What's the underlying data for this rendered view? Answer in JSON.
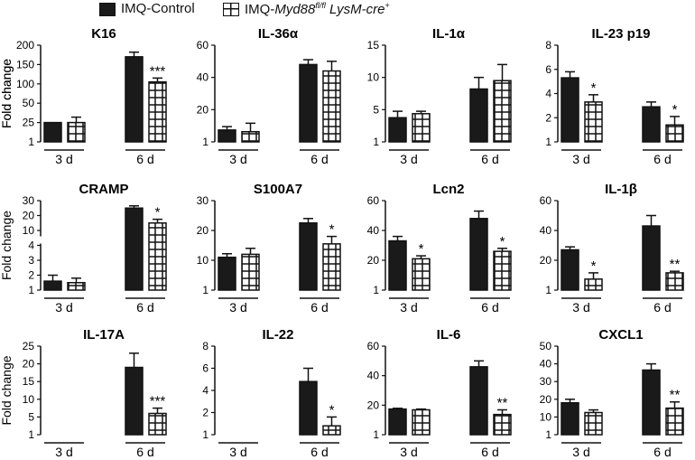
{
  "legend": {
    "control_label": "IMQ-Control",
    "knockout_prefix": "IMQ-",
    "knockout_gene": "Myd88",
    "knockout_sup1": "fl/fl",
    "knockout_mid": " LysM-cre",
    "knockout_sup2": "+",
    "control_color": "#1a1a1a",
    "knockout_pattern": "white with black grid"
  },
  "chart_data": [
    {
      "type": "bar",
      "title": "K16",
      "ylabel": "Fold change",
      "ylim": [
        1,
        200
      ],
      "yticks": [
        1,
        25,
        50,
        100,
        150,
        200
      ],
      "yticklabels": [
        "1",
        "25",
        "50",
        "100",
        "150",
        "200"
      ],
      "categories": [
        "3 d",
        "6 d"
      ],
      "series": [
        {
          "name": "IMQ-Control",
          "values": [
            25,
            170
          ],
          "errors": [
            0,
            12
          ]
        },
        {
          "name": "IMQ-Myd88fl/fl LysM-cre+",
          "values": [
            25,
            105
          ],
          "errors": [
            7,
            10
          ]
        }
      ],
      "significance": [
        "",
        "***"
      ]
    },
    {
      "type": "bar",
      "title": "IL-36α",
      "ylabel": "",
      "ylim": [
        1,
        60
      ],
      "yticks": [
        1,
        20,
        40,
        60
      ],
      "yticklabels": [
        "1",
        "20",
        "40",
        "60"
      ],
      "categories": [
        "3 d",
        "6 d"
      ],
      "series": [
        {
          "name": "IMQ-Control",
          "values": [
            8,
            48
          ],
          "errors": [
            2,
            3
          ]
        },
        {
          "name": "IMQ-Myd88fl/fl LysM-cre+",
          "values": [
            7,
            44
          ],
          "errors": [
            5,
            6
          ]
        }
      ],
      "significance": [
        "",
        ""
      ]
    },
    {
      "type": "bar",
      "title": "IL-1α",
      "ylabel": "",
      "ylim": [
        1,
        15
      ],
      "yticks": [
        1,
        5,
        10,
        15
      ],
      "yticklabels": [
        "1",
        "5",
        "10",
        "15"
      ],
      "categories": [
        "3 d",
        "6 d"
      ],
      "series": [
        {
          "name": "IMQ-Control",
          "values": [
            4,
            8.2
          ],
          "errors": [
            0.8,
            1.8
          ]
        },
        {
          "name": "IMQ-Myd88fl/fl LysM-cre+",
          "values": [
            4.5,
            9.5
          ],
          "errors": [
            0.3,
            2.5
          ]
        }
      ],
      "significance": [
        "",
        ""
      ]
    },
    {
      "type": "bar",
      "title": "IL-23 p19",
      "ylabel": "Fold change",
      "ylim": [
        1,
        8
      ],
      "yticks": [
        1,
        2,
        4,
        6,
        8
      ],
      "yticklabels": [
        "1",
        "2",
        "4",
        "6",
        "8"
      ],
      "categories": [
        "3 d",
        "6 d"
      ],
      "series": [
        {
          "name": "IMQ-Control",
          "values": [
            5.3,
            2.9
          ],
          "errors": [
            0.5,
            0.4
          ]
        },
        {
          "name": "IMQ-Myd88fl/fl LysM-cre+",
          "values": [
            3.3,
            1.7
          ],
          "errors": [
            0.6,
            0.4
          ]
        }
      ],
      "significance": [
        "*",
        "*"
      ]
    },
    {
      "type": "bar",
      "title": "CRAMP",
      "ylabel": "Fold change",
      "ylim": [
        1,
        30
      ],
      "yticks": [
        1,
        2,
        3,
        4,
        10,
        20,
        30
      ],
      "yticklabels": [
        "1",
        "2",
        "3",
        "4",
        "10",
        "20",
        "30"
      ],
      "axis_break": [
        4,
        4
      ],
      "categories": [
        "3 d",
        "6 d"
      ],
      "series": [
        {
          "name": "IMQ-Control",
          "values": [
            1.6,
            25
          ],
          "errors": [
            0.4,
            1.5
          ]
        },
        {
          "name": "IMQ-Myd88fl/fl LysM-cre+",
          "values": [
            1.5,
            15
          ],
          "errors": [
            0.3,
            2.5
          ]
        }
      ],
      "significance": [
        "",
        "*"
      ]
    },
    {
      "type": "bar",
      "title": "S100A7",
      "ylabel": "",
      "ylim": [
        1,
        30
      ],
      "yticks": [
        1,
        10,
        20,
        30
      ],
      "yticklabels": [
        "1",
        "10",
        "20",
        "30"
      ],
      "categories": [
        "3 d",
        "6 d"
      ],
      "series": [
        {
          "name": "IMQ-Control",
          "values": [
            11,
            22.5
          ],
          "errors": [
            1.2,
            1.5
          ]
        },
        {
          "name": "IMQ-Myd88fl/fl LysM-cre+",
          "values": [
            12,
            15.5
          ],
          "errors": [
            2,
            2.5
          ]
        }
      ],
      "significance": [
        "",
        "*"
      ]
    },
    {
      "type": "bar",
      "title": "Lcn2",
      "ylabel": "",
      "ylim": [
        1,
        60
      ],
      "yticks": [
        1,
        20,
        40,
        60
      ],
      "yticklabels": [
        "1",
        "20",
        "40",
        "60"
      ],
      "categories": [
        "3 d",
        "6 d"
      ],
      "series": [
        {
          "name": "IMQ-Control",
          "values": [
            33,
            48
          ],
          "errors": [
            3,
            5
          ]
        },
        {
          "name": "IMQ-Myd88fl/fl LysM-cre+",
          "values": [
            21,
            26
          ],
          "errors": [
            2,
            2
          ]
        }
      ],
      "significance": [
        "*",
        "*"
      ]
    },
    {
      "type": "bar",
      "title": "IL-1β",
      "ylabel": "",
      "ylim": [
        1,
        60
      ],
      "yticks": [
        1,
        20,
        40,
        60
      ],
      "yticklabels": [
        "1",
        "20",
        "40",
        "60"
      ],
      "categories": [
        "3 d",
        "6 d"
      ],
      "series": [
        {
          "name": "IMQ-Control",
          "values": [
            27,
            43
          ],
          "errors": [
            2,
            7
          ]
        },
        {
          "name": "IMQ-Myd88fl/fl LysM-cre+",
          "values": [
            8,
            12
          ],
          "errors": [
            4,
            1
          ]
        }
      ],
      "significance": [
        "*",
        "**"
      ]
    },
    {
      "type": "bar",
      "title": "IL-17A",
      "ylabel": "Fold change",
      "ylim": [
        1,
        25
      ],
      "yticks": [
        1,
        5,
        10,
        15,
        20,
        25
      ],
      "yticklabels": [
        "1",
        "5",
        "10",
        "15",
        "20",
        "25"
      ],
      "categories": [
        "3 d",
        "6 d"
      ],
      "series": [
        {
          "name": "IMQ-Control",
          "values": [
            null,
            19
          ],
          "errors": [
            0,
            4
          ]
        },
        {
          "name": "IMQ-Myd88fl/fl LysM-cre+",
          "values": [
            null,
            6
          ],
          "errors": [
            0,
            1.5
          ]
        }
      ],
      "significance": [
        "",
        "***"
      ]
    },
    {
      "type": "bar",
      "title": "IL-22",
      "ylabel": "",
      "ylim": [
        1,
        8
      ],
      "yticks": [
        1,
        2,
        4,
        6,
        8
      ],
      "yticklabels": [
        "1",
        "2",
        "4",
        "6",
        "8"
      ],
      "categories": [
        "3 d",
        "6 d"
      ],
      "series": [
        {
          "name": "IMQ-Control",
          "values": [
            null,
            4.8
          ],
          "errors": [
            0,
            1.2
          ]
        },
        {
          "name": "IMQ-Myd88fl/fl LysM-cre+",
          "values": [
            null,
            1.4
          ],
          "errors": [
            0,
            0.4
          ]
        }
      ],
      "significance": [
        "",
        "*"
      ]
    },
    {
      "type": "bar",
      "title": "IL-6",
      "ylabel": "",
      "ylim": [
        1,
        60
      ],
      "yticks": [
        1,
        20,
        40,
        60
      ],
      "yticklabels": [
        "1",
        "20",
        "40",
        "60"
      ],
      "categories": [
        "3 d",
        "6 d"
      ],
      "series": [
        {
          "name": "IMQ-Control",
          "values": [
            17.5,
            46
          ],
          "errors": [
            0.5,
            4
          ]
        },
        {
          "name": "IMQ-Myd88fl/fl LysM-cre+",
          "values": [
            17,
            14
          ],
          "errors": [
            0.5,
            3
          ]
        }
      ],
      "significance": [
        "",
        "**"
      ]
    },
    {
      "type": "bar",
      "title": "CXCL1",
      "ylabel": "",
      "ylim": [
        1,
        50
      ],
      "yticks": [
        1,
        10,
        20,
        30,
        40,
        50
      ],
      "yticklabels": [
        "1",
        "10",
        "20",
        "30",
        "40",
        "50"
      ],
      "categories": [
        "3 d",
        "6 d"
      ],
      "series": [
        {
          "name": "IMQ-Control",
          "values": [
            18,
            36.5
          ],
          "errors": [
            2,
            3.5
          ]
        },
        {
          "name": "IMQ-Myd88fl/fl LysM-cre+",
          "values": [
            12.5,
            15
          ],
          "errors": [
            1.5,
            3.5
          ]
        }
      ],
      "significance": [
        "",
        "**"
      ]
    }
  ]
}
